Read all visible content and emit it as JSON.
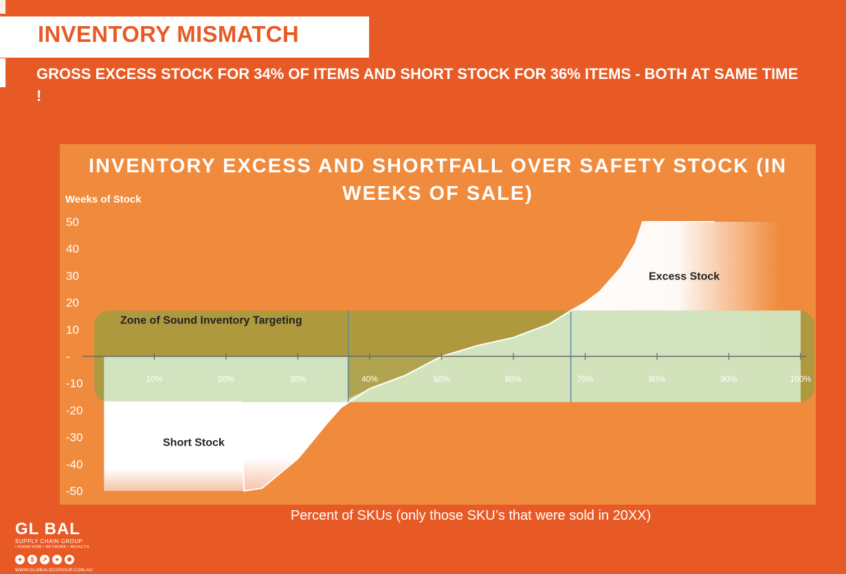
{
  "slide": {
    "title": "INVENTORY MISMATCH",
    "subtitle": "GROSS EXCESS STOCK FOR 34%  OF ITEMS AND SHORT STOCK FOR 36% ITEMS - BOTH AT SAME TIME !",
    "x_caption": "Percent of SKUs (only those SKU’s that were sold in 20XX)"
  },
  "logo": {
    "word": "GL BAL",
    "sub": "SUPPLY CHAIN GROUP",
    "tagline": "• KNOW HOW  • NETWORK  • RESULTS",
    "url": "WWW.GLOBALSCGROUP.COM.AU",
    "icons": [
      "bulb-icon",
      "dollar-icon",
      "chart-icon",
      "handshake-icon",
      "globe-icon"
    ]
  },
  "colors": {
    "background": "#e85a25",
    "chart_panel": "#f08b3e",
    "zone": "#a79a3e",
    "fill_light": "#d8f0d2",
    "white": "#ffffff"
  },
  "chart_data": {
    "type": "area",
    "title": "INVENTORY EXCESS AND SHORTFALL OVER SAFETY STOCK (IN WEEKS OF SALE)",
    "ylabel": "Weeks of Stock",
    "xlabel": "Percent of SKUs (only those SKU’s that were sold in 20XX)",
    "ylim": [
      -50,
      50
    ],
    "xlim": [
      0,
      100
    ],
    "y_ticks": [
      "50",
      "40",
      "30",
      "20",
      "10",
      "-",
      "-10",
      "-20",
      "-30",
      "-40",
      "-50"
    ],
    "y_tick_values": [
      50,
      40,
      30,
      20,
      10,
      0,
      -10,
      -20,
      -30,
      -40,
      -50
    ],
    "x_ticks": [
      "10%",
      "20%",
      "30%",
      "40%",
      "50%",
      "60%",
      "70%",
      "80%",
      "90%",
      "100%"
    ],
    "x_tick_values": [
      10,
      20,
      30,
      40,
      50,
      60,
      70,
      80,
      90,
      100
    ],
    "series": [
      {
        "x": [
          3,
          10,
          20,
          22,
          22.5,
          25,
          30,
          34,
          36,
          40,
          45,
          50,
          55,
          60,
          65,
          68,
          70,
          72,
          75,
          77,
          78,
          80,
          82,
          85,
          88
        ],
        "y": [
          -17,
          -17,
          -17,
          -17,
          -50,
          -49,
          -38,
          -25,
          -19,
          -12,
          -7,
          0,
          4,
          7,
          12,
          17,
          20,
          24,
          33,
          42,
          50,
          50,
          50,
          50,
          50
        ]
      }
    ],
    "regions": [
      {
        "label": "Zone of Sound Inventory Targeting",
        "y_range": [
          -17,
          17
        ]
      },
      {
        "label": "Excess Stock"
      },
      {
        "label": "Short Stock"
      }
    ],
    "zone_markers_x": [
      37,
      68
    ],
    "grid": false
  }
}
